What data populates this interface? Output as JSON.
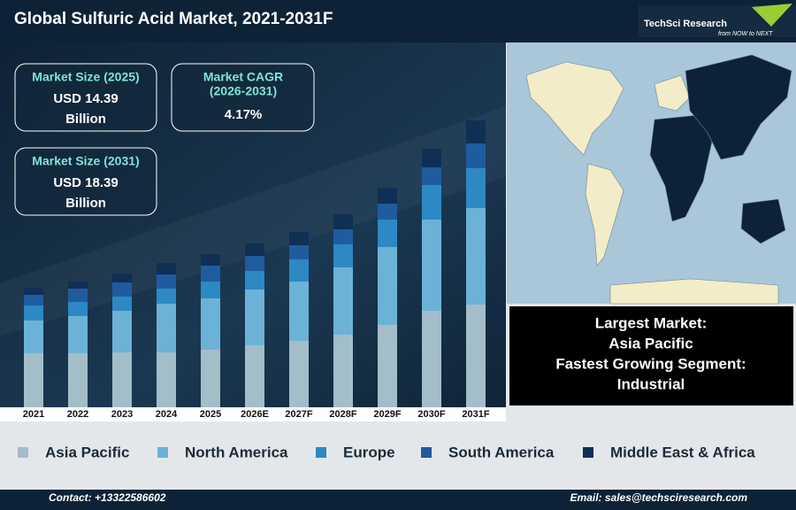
{
  "header": {
    "title": "Global Sulfuric Acid Market, 2021-2031F",
    "logo": "TechSci Research",
    "tagline": "from NOW to NEXT"
  },
  "kpis": [
    {
      "label": "Market Size (2025)",
      "value": "USD 14.39",
      "unit": "Billion"
    },
    {
      "label": [
        "Market CAGR",
        "(2026-2031)"
      ],
      "value": "4.17%"
    },
    {
      "label": "Market Size (2031)",
      "value": "USD 18.39",
      "unit": "Billion"
    }
  ],
  "highlights": [
    "Largest Market:",
    "Asia Pacific",
    "Fastest Growing Segment:",
    "Industrial"
  ],
  "chart_data": {
    "type": "stacked-bar",
    "categories": [
      "2021",
      "2022",
      "2023",
      "2024",
      "2025",
      "2026E",
      "2027F",
      "2028F",
      "2029F",
      "2030F",
      "2031F"
    ],
    "series": [
      {
        "name": "Asia Pacific",
        "color": "#a3bdc9",
        "values": [
          61,
          61,
          62,
          62,
          65,
          70,
          75,
          82,
          93,
          109,
          116
        ]
      },
      {
        "name": "North America",
        "color": "#6cb2d6",
        "values": [
          37,
          42,
          47,
          55,
          58,
          63,
          67,
          76,
          88,
          103,
          109
        ]
      },
      {
        "name": "Europe",
        "color": "#2d88c4",
        "values": [
          17,
          16,
          16,
          17,
          19,
          21,
          25,
          26,
          31,
          39,
          45
        ]
      },
      {
        "name": "South America",
        "color": "#1f5c9e",
        "values": [
          12,
          15,
          16,
          16,
          18,
          17,
          16,
          17,
          18,
          20,
          28
        ]
      },
      {
        "name": "Middle East & Africa",
        "color": "#0f2f55",
        "values": [
          8,
          8,
          10,
          13,
          13,
          14,
          15,
          17,
          18,
          21,
          26
        ]
      }
    ]
  },
  "footer": {
    "contact": "Contact: +13322586602",
    "email": "Email: sales@techsciresearch.com"
  }
}
